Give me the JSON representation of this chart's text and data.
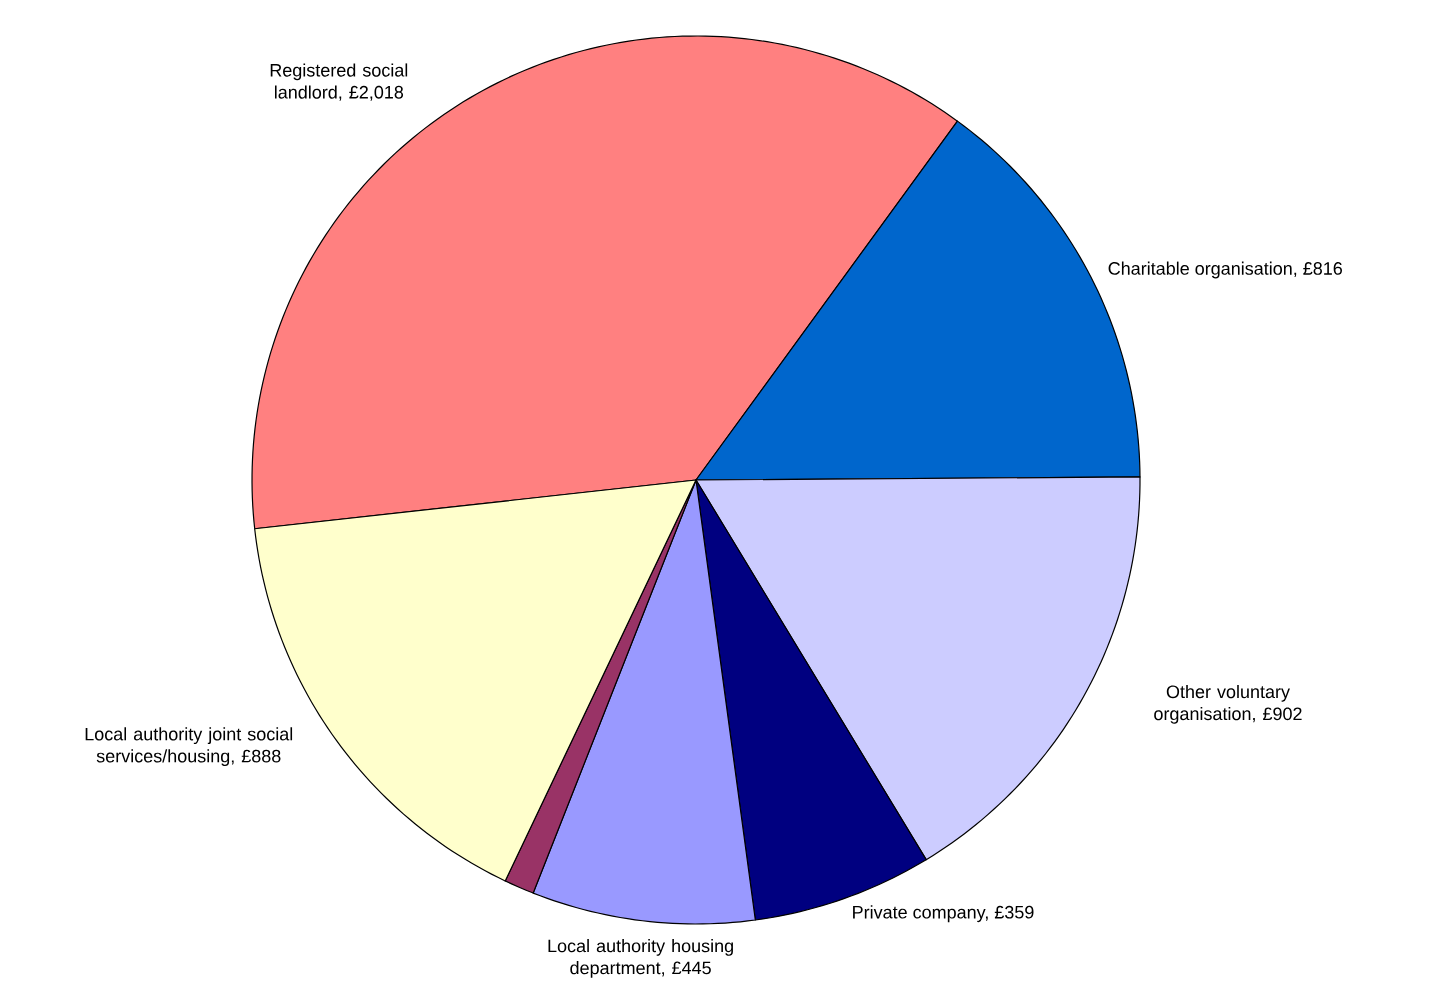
{
  "chart_data": {
    "type": "pie",
    "categories": [
      "Registered social landlord, £2,018",
      "Charitable organisation, £816",
      "Other voluntary organisation, £902",
      "Private company, £359",
      "Local authority housing department, £445",
      null,
      "Local authority joint social services/housing, £888"
    ],
    "values": [
      2018,
      816,
      902,
      359,
      445,
      60,
      888
    ],
    "colors": [
      "#ff8080",
      "#0066cc",
      "#ccccff",
      "#000080",
      "#9999ff",
      "#993366",
      "#ffffcc"
    ]
  }
}
